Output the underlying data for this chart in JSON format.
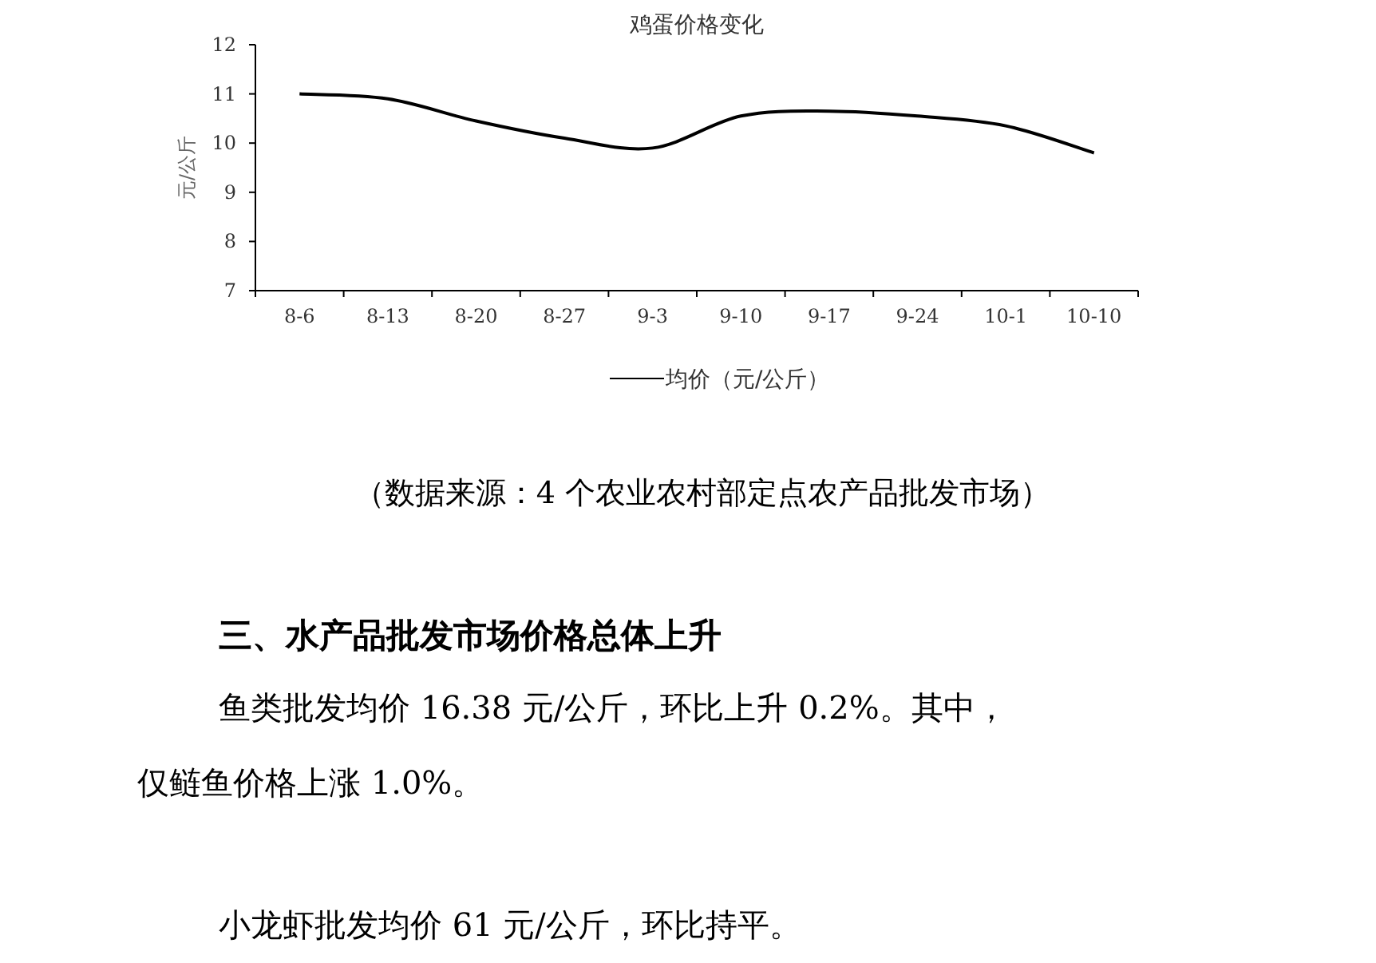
{
  "chart_data": {
    "type": "line",
    "title": "鸡蛋价格变化",
    "ylabel": "元/公斤",
    "categories": [
      "8-6",
      "8-13",
      "8-20",
      "8-27",
      "9-3",
      "9-10",
      "9-17",
      "9-24",
      "10-1",
      "10-10"
    ],
    "series": [
      {
        "name": "均价（元/公斤）",
        "color": "#000000",
        "values": [
          11.0,
          10.9,
          10.45,
          10.1,
          9.9,
          10.55,
          10.65,
          10.55,
          10.35,
          9.8
        ]
      }
    ],
    "ylim": [
      7,
      12
    ],
    "yticks": [
      7,
      8,
      9,
      10,
      11,
      12
    ],
    "grid": false,
    "legend": "bottom",
    "marker": "none",
    "line_style": "solid",
    "annotations": [
      "（数据来源：4 个农业农村部定点农产品批发市场）",
      "三、水产品批发市场价格总体上升",
      "鱼类批发均价 16.38 元/公斤，环比上升 0.2%。其中，",
      "仅鲢鱼价格上涨 1.0%。",
      "小龙虾批发均价 61 元/公斤，环比持平。"
    ]
  }
}
